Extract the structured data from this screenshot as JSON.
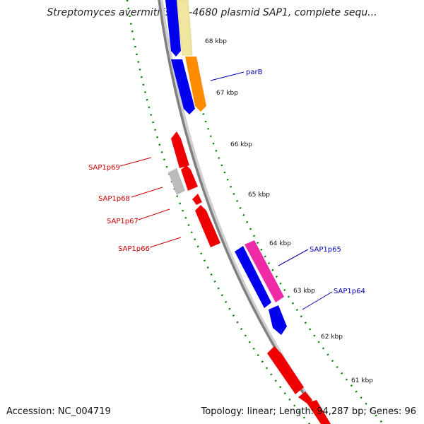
{
  "title": "Streptomyces avermitilis MA-4680 plasmid SAP1, complete sequ...",
  "footer": {
    "accession": "Accession: NC_004719",
    "topology": "Topology: linear; Length: 94,287 bp; Genes: 96"
  },
  "ticks": [
    {
      "label": "68 kbp"
    },
    {
      "label": "67 kbp"
    },
    {
      "label": "66 kbp"
    },
    {
      "label": "65 kbp"
    },
    {
      "label": "64 kbp"
    },
    {
      "label": "63 kbp"
    },
    {
      "label": "62 kbp"
    },
    {
      "label": "61 kbp"
    }
  ],
  "gene_labels": [
    {
      "text": "parB",
      "color": "#0000aa"
    },
    {
      "text": "SAP1p65",
      "color": "#0000aa"
    },
    {
      "text": "SAP1p64",
      "color": "#0000aa"
    },
    {
      "text": "SAP1p69",
      "color": "#cc0000"
    },
    {
      "text": "SAP1p68",
      "color": "#cc0000"
    },
    {
      "text": "SAP1p67",
      "color": "#cc0000"
    },
    {
      "text": "SAP1p66",
      "color": "#cc0000"
    }
  ],
  "colors": {
    "backbone": "#808080",
    "tick_green": "#008000",
    "forward_blue": "#0000ee",
    "forward_orange": "#ff8c00",
    "forward_yellow": "#f0e6a0",
    "forward_magenta": "#ee2aa6",
    "reverse_red": "#ee0000",
    "reverse_gray": "#bcbcbc"
  }
}
